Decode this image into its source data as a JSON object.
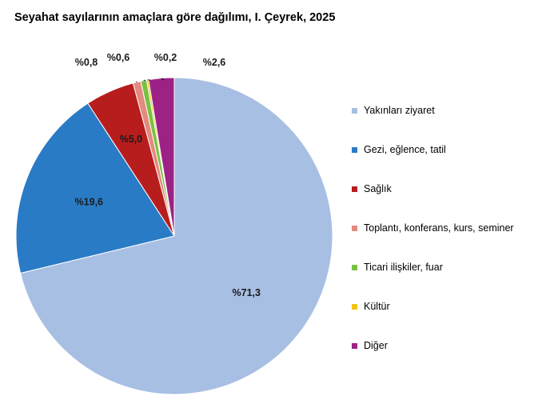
{
  "chart_data": {
    "type": "pie",
    "title": "Seyahat sayılarının amaçlara göre dağılımı, I. Çeyrek, 2025",
    "categories": [
      "Yakınları ziyaret",
      "Gezi, eğlence, tatil",
      "Sağlık",
      "Toplantı, konferans, kurs, seminer",
      "Ticari ilişkiler, fuar",
      "Kültür",
      "Diğer"
    ],
    "values": [
      71.3,
      19.6,
      5.0,
      0.8,
      0.6,
      0.2,
      2.6
    ],
    "data_labels": [
      "%71,3",
      "%19,6",
      "%5,0",
      "%0,8",
      "%0,6",
      "%0,2",
      "%2,6"
    ],
    "colors": [
      "#a7bfe3",
      "#2a7bc6",
      "#b81d1d",
      "#e38b7e",
      "#79c143",
      "#f2c318",
      "#9c2385"
    ],
    "legend_position": "right"
  }
}
